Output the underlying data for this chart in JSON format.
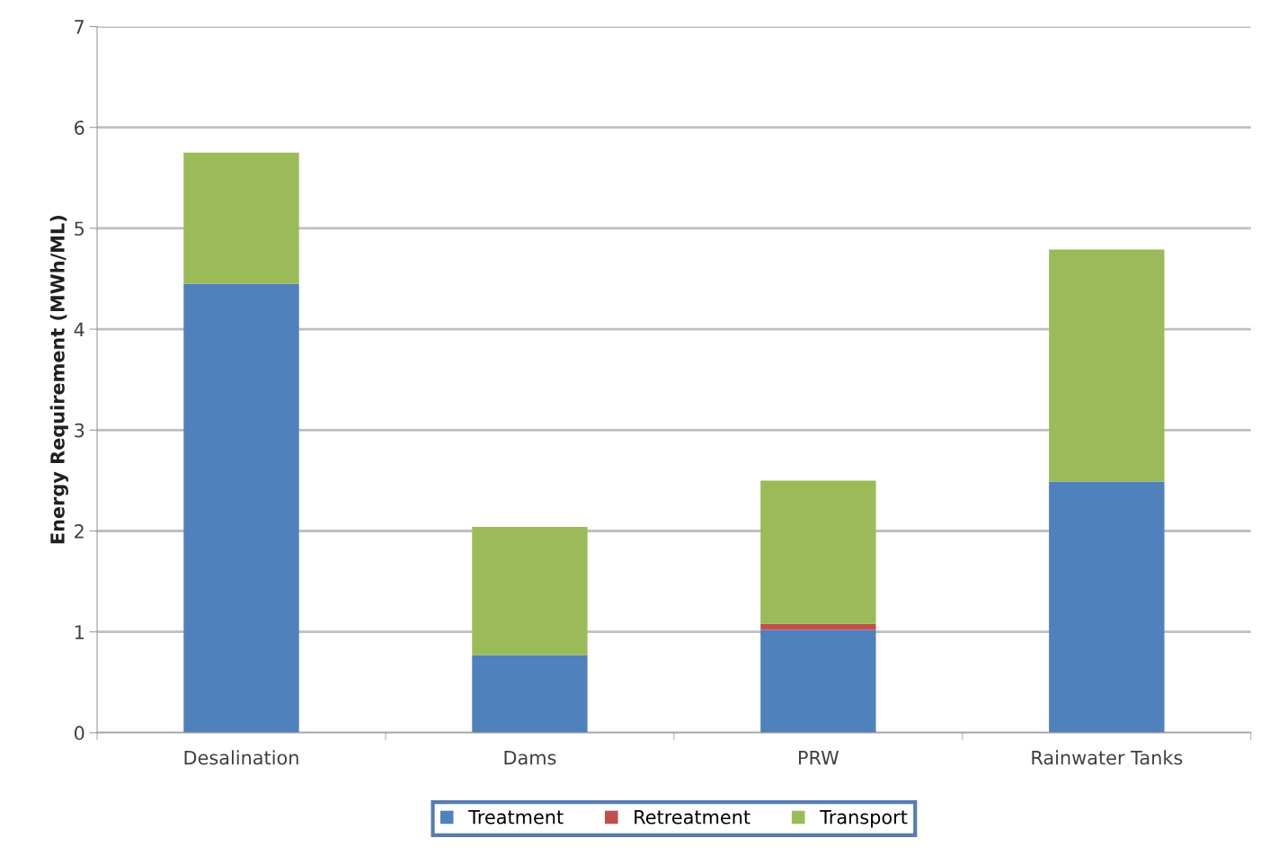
{
  "chart_data": {
    "type": "bar",
    "stacked": true,
    "ylabel": "Energy Requirement (MWh/ML)",
    "categories": [
      "Desalination",
      "Dams",
      "PRW",
      "Rainwater Tanks"
    ],
    "series": [
      {
        "name": "Treatment",
        "color": "#4f81bd",
        "values": [
          4.45,
          0.77,
          1.02,
          2.49
        ]
      },
      {
        "name": "Retreatment",
        "color": "#c0504d",
        "values": [
          0,
          0,
          0.06,
          0
        ]
      },
      {
        "name": "Transport",
        "color": "#9bbb59",
        "values": [
          1.3,
          1.27,
          1.42,
          2.3
        ]
      }
    ],
    "ylim": [
      0,
      7
    ],
    "yticks": [
      0,
      1,
      2,
      3,
      4,
      5,
      6,
      7
    ],
    "grid": "y",
    "legend": "bottom"
  }
}
